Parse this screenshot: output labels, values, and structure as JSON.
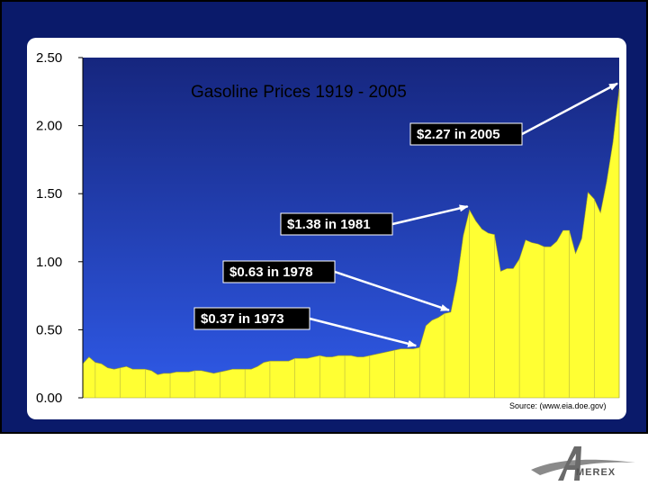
{
  "chart_data": {
    "type": "area",
    "title": "Gasoline Prices 1919 - 2005",
    "xlabel": "",
    "ylabel": "",
    "ylim": [
      0,
      2.5
    ],
    "xlim": [
      1919,
      2005
    ],
    "yticks": [
      "0.00",
      "0.50",
      "1.00",
      "1.50",
      "2.00",
      "2.50"
    ],
    "ytick_values": [
      0,
      0.5,
      1.0,
      1.5,
      2.0,
      2.5
    ],
    "grid": false,
    "legend": "none",
    "fill_color": "#ffff33",
    "background_gradient": [
      "#16267e",
      "#2f5ae8"
    ],
    "series": [
      {
        "x": [
          1919,
          1920,
          1921,
          1922,
          1923,
          1924,
          1925,
          1926,
          1927,
          1928,
          1929,
          1930,
          1931,
          1932,
          1933,
          1934,
          1935,
          1936,
          1937,
          1938,
          1939,
          1940,
          1941,
          1942,
          1943,
          1944,
          1945,
          1946,
          1947,
          1948,
          1949,
          1950,
          1951,
          1952,
          1953,
          1954,
          1955,
          1956,
          1957,
          1958,
          1959,
          1960,
          1961,
          1962,
          1963,
          1964,
          1965,
          1966,
          1967,
          1968,
          1969,
          1970,
          1971,
          1972,
          1973,
          1974,
          1975,
          1976,
          1977,
          1978,
          1979,
          1980,
          1981,
          1982,
          1983,
          1984,
          1985,
          1986,
          1987,
          1988,
          1989,
          1990,
          1991,
          1992,
          1993,
          1994,
          1995,
          1996,
          1997,
          1998,
          1999,
          2000,
          2001,
          2002,
          2003,
          2004,
          2005
        ],
        "y": [
          0.25,
          0.3,
          0.26,
          0.25,
          0.22,
          0.21,
          0.22,
          0.23,
          0.21,
          0.21,
          0.21,
          0.2,
          0.17,
          0.18,
          0.18,
          0.19,
          0.19,
          0.19,
          0.2,
          0.2,
          0.19,
          0.18,
          0.19,
          0.2,
          0.21,
          0.21,
          0.21,
          0.21,
          0.23,
          0.26,
          0.27,
          0.27,
          0.27,
          0.27,
          0.29,
          0.29,
          0.29,
          0.3,
          0.31,
          0.3,
          0.3,
          0.31,
          0.31,
          0.31,
          0.3,
          0.3,
          0.31,
          0.32,
          0.33,
          0.34,
          0.35,
          0.36,
          0.36,
          0.36,
          0.37,
          0.53,
          0.57,
          0.59,
          0.62,
          0.63,
          0.86,
          1.19,
          1.38,
          1.3,
          1.24,
          1.21,
          1.2,
          0.93,
          0.95,
          0.95,
          1.02,
          1.16,
          1.14,
          1.13,
          1.11,
          1.11,
          1.15,
          1.23,
          1.23,
          1.06,
          1.17,
          1.51,
          1.46,
          1.36,
          1.59,
          1.88,
          2.27
        ]
      }
    ],
    "annotations": [
      {
        "text": "$2.27 in 2005",
        "x": 2005,
        "y": 2.27
      },
      {
        "text": "$1.38 in 1981",
        "x": 1981,
        "y": 1.38
      },
      {
        "text": "$0.63 in 1978",
        "x": 1978,
        "y": 0.63
      },
      {
        "text": "$0.37 in 1973",
        "x": 1973,
        "y": 0.37
      }
    ],
    "source": "Source: (www.eia.doe.gov)"
  },
  "logo": {
    "text": "MEREX",
    "logo_letter": "A",
    "color": "#555555"
  },
  "frame": {
    "background": "#0a1a6a"
  }
}
